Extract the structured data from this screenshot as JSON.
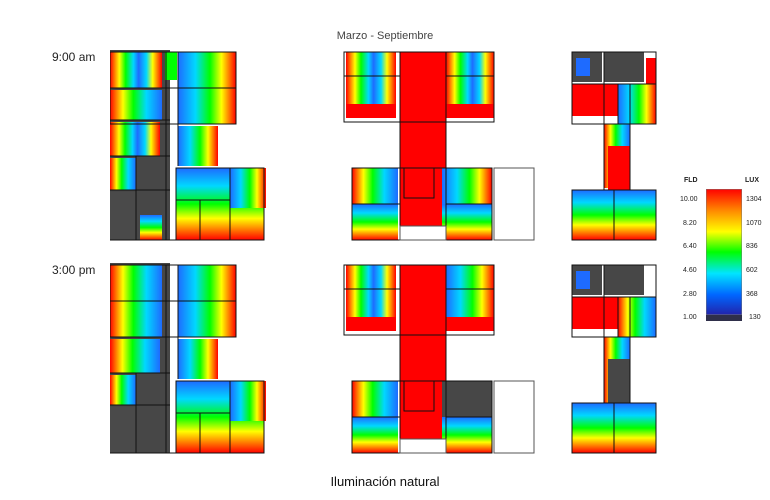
{
  "title": "Marzo - Septiembre",
  "rows": [
    {
      "label": "9:00 am"
    },
    {
      "label": "3:00 pm"
    }
  ],
  "caption": "Iluminación natural",
  "legend": {
    "fld_header": "FLD",
    "lux_header": "LUX",
    "fld_ticks": [
      "10.00",
      "8.20",
      "6.40",
      "4.60",
      "2.80",
      "1.00"
    ],
    "lux_ticks": [
      "1304",
      "1070",
      "836",
      "602",
      "368",
      "130"
    ],
    "colors": [
      "#ff0000",
      "#ff8800",
      "#ffff00",
      "#00ff00",
      "#00e5ff",
      "#0066ff",
      "#2222aa"
    ]
  }
}
